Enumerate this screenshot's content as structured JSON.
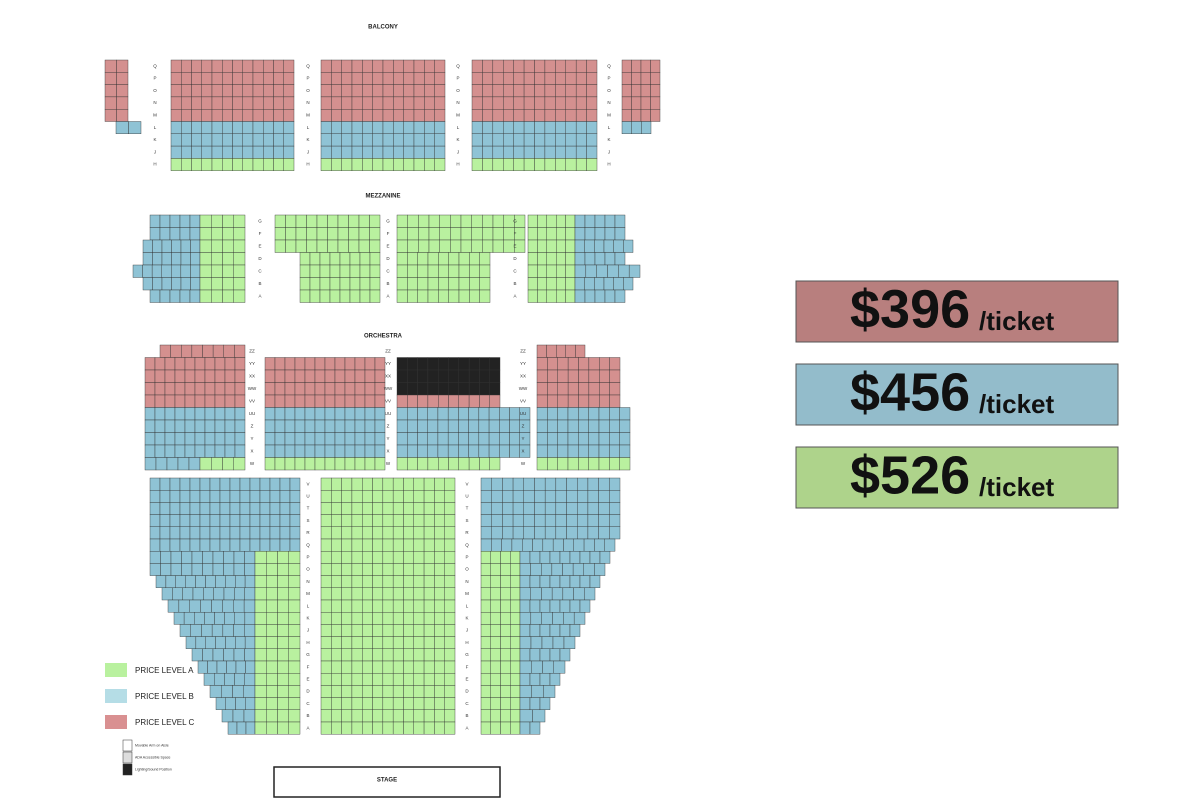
{
  "sections": {
    "balcony": "BALCONY",
    "mezzanine": "MEZZANINE",
    "orchestra": "ORCHESTRA",
    "stage": "STAGE"
  },
  "rows": {
    "balcony": [
      "Q",
      "P",
      "O",
      "N",
      "M",
      "L",
      "K",
      "J",
      "H"
    ],
    "mezzanine": [
      "G",
      "F",
      "E",
      "D",
      "C",
      "B",
      "A"
    ],
    "orchestra_upper": [
      "ZZ",
      "YY",
      "XX",
      "WW",
      "VV",
      "UU",
      "Z",
      "Y",
      "X",
      "W"
    ],
    "orchestra_lower": [
      "V",
      "U",
      "T",
      "S",
      "R",
      "Q",
      "P",
      "O",
      "N",
      "M",
      "L",
      "K",
      "J",
      "H",
      "G",
      "F",
      "E",
      "D",
      "C",
      "B",
      "A"
    ]
  },
  "legend": [
    "PRICE LEVEL A",
    "PRICE LEVEL B",
    "PRICE LEVEL C"
  ],
  "symbols": [
    "Movable Arm on Aisle",
    "ADA Accessible Space",
    "Lighting/Sound Position"
  ],
  "prices": [
    {
      "amount": "$396",
      "unit": "/ticket"
    },
    {
      "amount": "$456",
      "unit": "/ticket"
    },
    {
      "amount": "$526",
      "unit": "/ticket"
    }
  ]
}
